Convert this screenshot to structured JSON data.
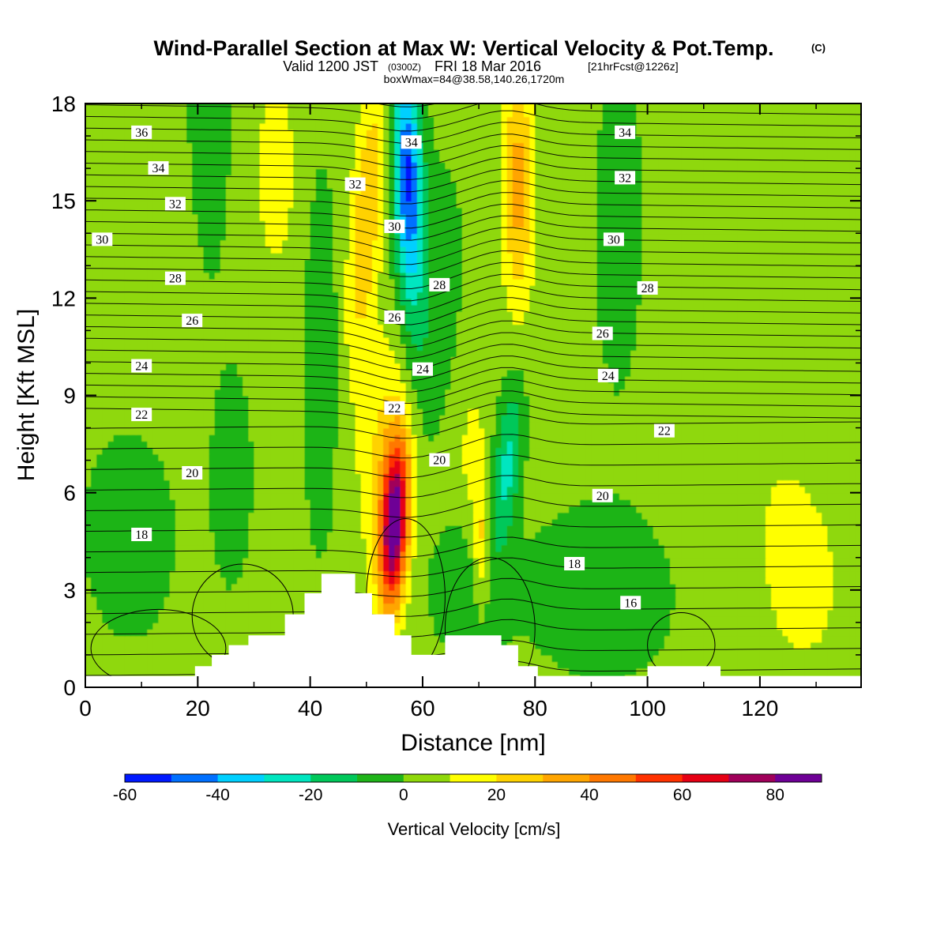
{
  "header": {
    "title": "Wind-Parallel Section at Max W: Vertical Velocity & Pot.Temp.",
    "title_mark": "(C)",
    "valid_prefix": "Valid 1200 JST",
    "valid_utc": "(0300Z)",
    "valid_date": "FRI 18 Mar 2016",
    "forecast_info": "[21hrFcst@1226z]",
    "box_info": "boxWmax=84@38.58,140.26,1720m"
  },
  "colorbar": {
    "title": "Vertical Velocity [cm/s]",
    "tick_labels": [
      "-60",
      "-40",
      "-20",
      "0",
      "20",
      "40",
      "60",
      "80"
    ],
    "levels": [
      -60,
      -50,
      -40,
      -30,
      -20,
      -10,
      0,
      10,
      20,
      30,
      40,
      50,
      60,
      70,
      80,
      90
    ],
    "colors": [
      "#0019ff",
      "#0070ff",
      "#00d0ff",
      "#00e6c0",
      "#00c85a",
      "#1fb419",
      "#8fd80a",
      "#ffff00",
      "#ffd200",
      "#ffa500",
      "#ff7800",
      "#ff3200",
      "#e60014",
      "#a0005a",
      "#6e0096"
    ]
  },
  "chart_data": {
    "type": "contour",
    "title": "Wind-Parallel Section at Max W: Vertical Velocity & Pot.Temp.",
    "xlabel": "Distance [nm]",
    "ylabel": "Height [Kft MSL]",
    "xlim": [
      0,
      138
    ],
    "ylim": [
      0,
      18
    ],
    "x_ticks": [
      "0",
      "20",
      "40",
      "60",
      "80",
      "100",
      "120"
    ],
    "y_ticks": [
      "0",
      "3",
      "6",
      "9",
      "12",
      "15",
      "18"
    ],
    "filled_field": "Vertical Velocity [cm/s]",
    "max_w": 84,
    "max_w_location": {
      "x": 55,
      "y": 5.0
    },
    "w_features": [
      {
        "x": 55,
        "y": 5.0,
        "value": 84
      },
      {
        "x": 50,
        "y": 15.5,
        "value": 30
      },
      {
        "x": 77,
        "y": 16.0,
        "value": 35
      },
      {
        "x": 35,
        "y": 16.5,
        "value": 15
      },
      {
        "x": 71,
        "y": 4.5,
        "value": 25
      },
      {
        "x": 57,
        "y": 16.5,
        "value": -45
      },
      {
        "x": 75,
        "y": 7.0,
        "value": -25
      },
      {
        "x": 60,
        "y": 12.0,
        "value": -10
      },
      {
        "x": 10,
        "y": 5.0,
        "value": -5
      }
    ],
    "theta_contours": [
      {
        "label": "36",
        "x": 10,
        "y": 17.1
      },
      {
        "label": "34",
        "x": 13,
        "y": 16.0
      },
      {
        "label": "32",
        "x": 16,
        "y": 14.9
      },
      {
        "label": "30",
        "x": 3,
        "y": 13.8
      },
      {
        "label": "28",
        "x": 16,
        "y": 12.6
      },
      {
        "label": "26",
        "x": 19,
        "y": 11.3
      },
      {
        "label": "24",
        "x": 10,
        "y": 9.9
      },
      {
        "label": "22",
        "x": 10,
        "y": 8.4
      },
      {
        "label": "20",
        "x": 19,
        "y": 6.6
      },
      {
        "label": "18",
        "x": 10,
        "y": 4.7
      },
      {
        "label": "34",
        "x": 58,
        "y": 16.8
      },
      {
        "label": "32",
        "x": 48,
        "y": 15.5
      },
      {
        "label": "30",
        "x": 55,
        "y": 14.2
      },
      {
        "label": "28",
        "x": 63,
        "y": 12.4
      },
      {
        "label": "26",
        "x": 55,
        "y": 11.4
      },
      {
        "label": "24",
        "x": 60,
        "y": 9.8
      },
      {
        "label": "22",
        "x": 55,
        "y": 8.6
      },
      {
        "label": "20",
        "x": 63,
        "y": 7.0
      },
      {
        "label": "34",
        "x": 96,
        "y": 17.1
      },
      {
        "label": "32",
        "x": 96,
        "y": 15.7
      },
      {
        "label": "30",
        "x": 94,
        "y": 13.8
      },
      {
        "label": "28",
        "x": 100,
        "y": 12.3
      },
      {
        "label": "26",
        "x": 92,
        "y": 10.9
      },
      {
        "label": "24",
        "x": 93,
        "y": 9.6
      },
      {
        "label": "22",
        "x": 103,
        "y": 7.9
      },
      {
        "label": "20",
        "x": 92,
        "y": 5.9
      },
      {
        "label": "18",
        "x": 87,
        "y": 3.8
      },
      {
        "label": "16",
        "x": 97,
        "y": 2.6
      }
    ],
    "terrain": [
      [
        0,
        0.35
      ],
      [
        19.5,
        0.35
      ],
      [
        19.5,
        0.65
      ],
      [
        22.5,
        0.65
      ],
      [
        22.5,
        1.0
      ],
      [
        25.5,
        1.0
      ],
      [
        25.5,
        1.3
      ],
      [
        29,
        1.3
      ],
      [
        29,
        1.6
      ],
      [
        35.5,
        1.6
      ],
      [
        35.5,
        2.25
      ],
      [
        39,
        2.25
      ],
      [
        39,
        2.9
      ],
      [
        42,
        2.9
      ],
      [
        42,
        3.5
      ],
      [
        48,
        3.5
      ],
      [
        48,
        2.9
      ],
      [
        51,
        2.9
      ],
      [
        51,
        2.25
      ],
      [
        55,
        2.25
      ],
      [
        55,
        1.6
      ],
      [
        58,
        1.6
      ],
      [
        58,
        1.0
      ],
      [
        64,
        1.0
      ],
      [
        64,
        1.6
      ],
      [
        74,
        1.6
      ],
      [
        74,
        1.3
      ],
      [
        77,
        1.3
      ],
      [
        77,
        0.65
      ],
      [
        80.5,
        0.65
      ],
      [
        80.5,
        0.35
      ],
      [
        100,
        0.35
      ],
      [
        100,
        0.65
      ],
      [
        113,
        0.65
      ],
      [
        113,
        0.35
      ],
      [
        138,
        0.35
      ]
    ],
    "grid": false
  }
}
